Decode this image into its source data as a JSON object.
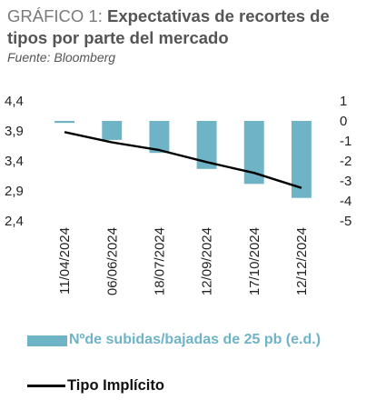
{
  "header": {
    "title_prefix": "GRÁFICO 1: ",
    "title_main": "Expectativas de recortes de tipos por parte del mercado",
    "source": "Fuente: Bloomberg"
  },
  "chart_data": {
    "type": "bar",
    "categories": [
      "11/04/2024",
      "06/06/2024",
      "18/07/2024",
      "12/09/2024",
      "17/10/2024",
      "12/12/2024"
    ],
    "series": [
      {
        "name": "Nºde subidas/bajadas de 25 pb (e.d.)",
        "type": "bar",
        "axis": "right",
        "color": "#6fb3c6",
        "values": [
          -0.1,
          -0.95,
          -1.6,
          -2.4,
          -3.15,
          -3.85
        ]
      },
      {
        "name": "Tipo Implícito",
        "type": "line",
        "axis": "left",
        "color": "#000000",
        "values": [
          3.88,
          3.71,
          3.58,
          3.38,
          3.2,
          2.95
        ]
      }
    ],
    "y_left": {
      "min": 2.4,
      "max": 4.4,
      "ticks": [
        "4,4",
        "3,9",
        "3,4",
        "2,9",
        "2,4"
      ],
      "tick_values": [
        4.4,
        3.9,
        3.4,
        2.9,
        2.4
      ]
    },
    "y_right": {
      "min": -5,
      "max": 1,
      "ticks": [
        "1",
        "0",
        "-1",
        "-2",
        "-3",
        "-4",
        "-5"
      ],
      "tick_values": [
        1,
        0,
        -1,
        -2,
        -3,
        -4,
        -5
      ]
    },
    "grid": false,
    "legend": "bottom"
  }
}
